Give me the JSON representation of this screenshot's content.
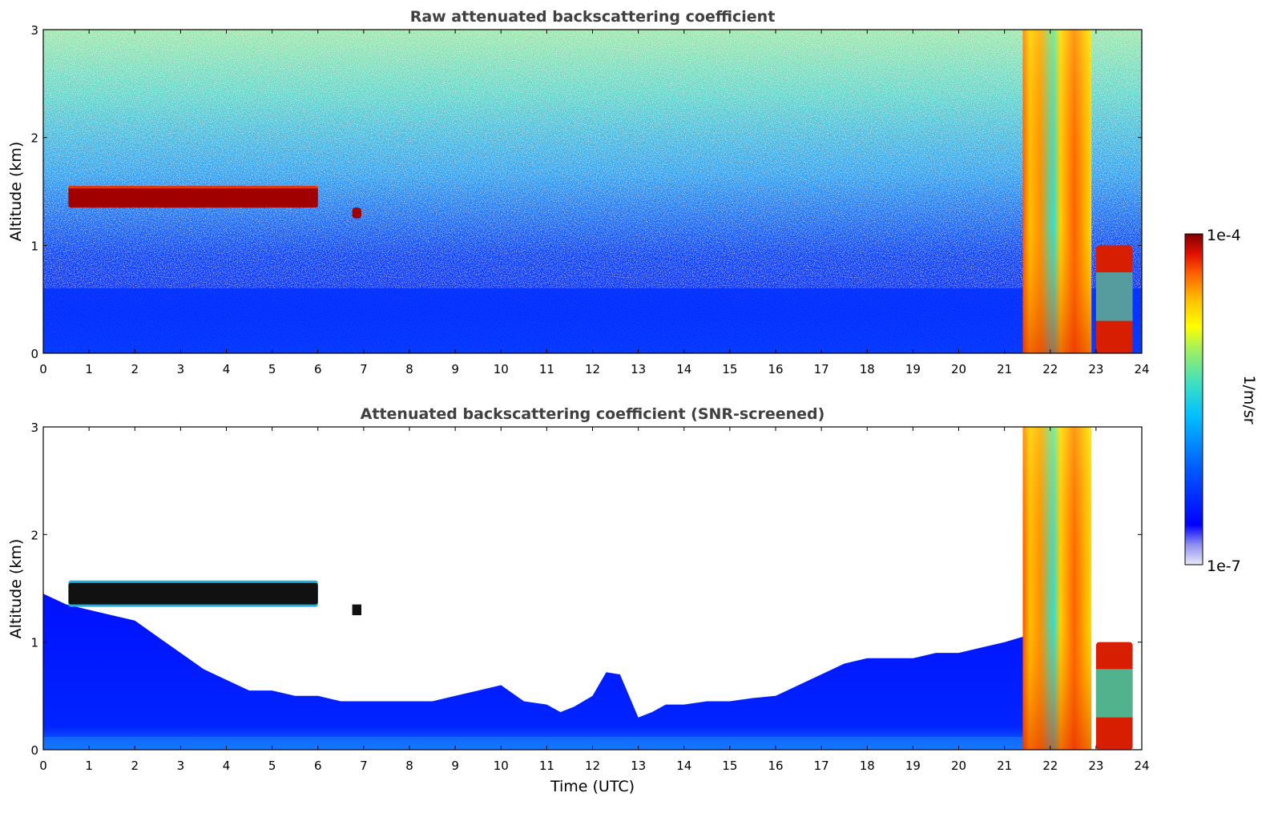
{
  "chart_data": [
    {
      "type": "heatmap",
      "title": "Raw attenuated backscattering coefficient",
      "xlabel": "",
      "ylabel": "Altitude (km)",
      "xlim": [
        0,
        24
      ],
      "ylim": [
        0,
        3
      ],
      "xticks": [
        0,
        1,
        2,
        3,
        4,
        5,
        6,
        7,
        8,
        9,
        10,
        11,
        12,
        13,
        14,
        15,
        16,
        17,
        18,
        19,
        20,
        21,
        22,
        23,
        24
      ],
      "yticks": [
        0,
        1,
        2,
        3
      ],
      "features": [
        {
          "label": "cloud layer",
          "x": [
            0.55,
            6.0
          ],
          "y": [
            1.35,
            1.55
          ],
          "level": "1e-4"
        },
        {
          "label": "cloud fragment",
          "x": [
            6.75,
            6.95
          ],
          "y": [
            1.25,
            1.35
          ],
          "level": "1e-4"
        },
        {
          "label": "boundary layer",
          "x": [
            0,
            21.4
          ],
          "y": [
            0,
            0.6
          ],
          "level": "blue"
        },
        {
          "label": "precipitation column",
          "x": [
            21.4,
            22.9
          ],
          "y": [
            0,
            3
          ],
          "level": "orange"
        },
        {
          "label": "low cloud",
          "x": [
            23.0,
            23.8
          ],
          "y": [
            0,
            1.0
          ],
          "level": "red"
        }
      ]
    },
    {
      "type": "heatmap",
      "title": "Attenuated backscattering coefficient (SNR-screened)",
      "xlabel": "Time (UTC)",
      "ylabel": "Altitude (km)",
      "xlim": [
        0,
        24
      ],
      "ylim": [
        0,
        3
      ],
      "xticks": [
        0,
        1,
        2,
        3,
        4,
        5,
        6,
        7,
        8,
        9,
        10,
        11,
        12,
        13,
        14,
        15,
        16,
        17,
        18,
        19,
        20,
        21,
        22,
        23,
        24
      ],
      "yticks": [
        0,
        1,
        2,
        3
      ],
      "boundary_layer_top": {
        "x": [
          0,
          0.5,
          1,
          1.5,
          2,
          2.5,
          3,
          3.5,
          4,
          4.5,
          5,
          5.5,
          6,
          6.5,
          7,
          7.5,
          8,
          8.5,
          9,
          9.5,
          10,
          10.5,
          11,
          11.3,
          11.6,
          12,
          12.3,
          12.6,
          13,
          13.3,
          13.6,
          14,
          14.5,
          15,
          15.5,
          16,
          16.5,
          17,
          17.5,
          18,
          18.5,
          19,
          19.5,
          20,
          20.5,
          21,
          21.4
        ],
        "y": [
          1.45,
          1.35,
          1.3,
          1.25,
          1.2,
          1.05,
          0.9,
          0.75,
          0.65,
          0.55,
          0.55,
          0.5,
          0.5,
          0.45,
          0.45,
          0.45,
          0.45,
          0.45,
          0.5,
          0.55,
          0.6,
          0.45,
          0.42,
          0.35,
          0.4,
          0.5,
          0.72,
          0.7,
          0.3,
          0.35,
          0.42,
          0.42,
          0.45,
          0.45,
          0.48,
          0.5,
          0.6,
          0.7,
          0.8,
          0.85,
          0.85,
          0.85,
          0.9,
          0.9,
          0.95,
          1.0,
          1.05
        ]
      }
    }
  ],
  "colorbar": {
    "max_label": "1e-4",
    "min_label": "1e-7",
    "unit_label": "1/m/sr",
    "colors": [
      "#e8e8f8",
      "#9090f0",
      "#0000ff",
      "#0060ff",
      "#00c0ff",
      "#40e0c0",
      "#a0f060",
      "#ffff00",
      "#ffc000",
      "#ff6000",
      "#e01000",
      "#800000"
    ]
  }
}
